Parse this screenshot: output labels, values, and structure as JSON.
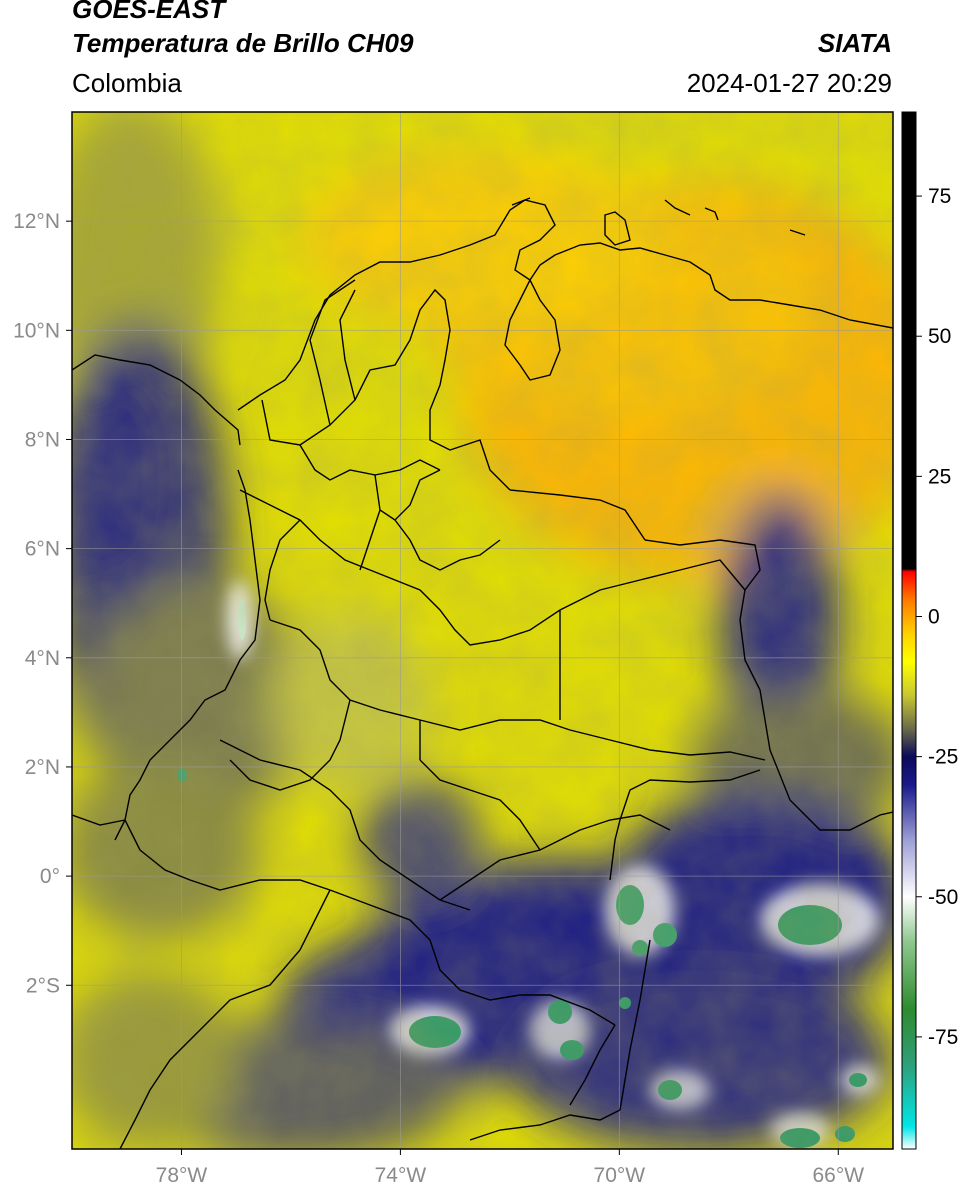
{
  "header": {
    "title_line1": "GOES-EAST",
    "title_line2": "Temperatura de Brillo CH09",
    "region": "Colombia",
    "organization": "SIATA",
    "datetime": "2024-01-27 20:29"
  },
  "map": {
    "lon_range": [
      -80,
      -65
    ],
    "lat_range": [
      -5,
      14
    ],
    "lat_ticks": [
      {
        "value": 12,
        "label": "12°N"
      },
      {
        "value": 10,
        "label": "10°N"
      },
      {
        "value": 8,
        "label": "8°N"
      },
      {
        "value": 6,
        "label": "6°N"
      },
      {
        "value": 4,
        "label": "4°N"
      },
      {
        "value": 2,
        "label": "2°N"
      },
      {
        "value": 0,
        "label": "0°"
      },
      {
        "value": -2,
        "label": "2°S"
      }
    ],
    "lon_ticks": [
      {
        "value": -78,
        "label": "78°W"
      },
      {
        "value": -74,
        "label": "74°W"
      },
      {
        "value": -70,
        "label": "70°W"
      },
      {
        "value": -66,
        "label": "66°W"
      }
    ],
    "grid": true
  },
  "colorbar": {
    "range": [
      -95,
      90
    ],
    "ticks": [
      {
        "value": 75,
        "label": "75"
      },
      {
        "value": 50,
        "label": "50"
      },
      {
        "value": 25,
        "label": "25"
      },
      {
        "value": 0,
        "label": "0"
      },
      {
        "value": -25,
        "label": "-25"
      },
      {
        "value": -50,
        "label": "-50"
      },
      {
        "value": -75,
        "label": "-75"
      }
    ],
    "color_stops": [
      {
        "value": -95,
        "color": "#ffffff"
      },
      {
        "value": -91,
        "color": "#00e6e6"
      },
      {
        "value": -80,
        "color": "#2ea07a"
      },
      {
        "value": -70,
        "color": "#2e8b2e"
      },
      {
        "value": -58,
        "color": "#8fc88f"
      },
      {
        "value": -50,
        "color": "#ffffff"
      },
      {
        "value": -40,
        "color": "#9ea0d6"
      },
      {
        "value": -30,
        "color": "#1a1a8c"
      },
      {
        "value": -25,
        "color": "#0a0a5a"
      },
      {
        "value": -20,
        "color": "#6b6b4a"
      },
      {
        "value": -14,
        "color": "#c8c832"
      },
      {
        "value": -8,
        "color": "#ffff00"
      },
      {
        "value": -3,
        "color": "#ffd000"
      },
      {
        "value": 3,
        "color": "#ff7a00"
      },
      {
        "value": 8,
        "color": "#ff0000"
      },
      {
        "value": 8.5,
        "color": "#000000"
      },
      {
        "value": 90,
        "color": "#000000"
      }
    ]
  }
}
